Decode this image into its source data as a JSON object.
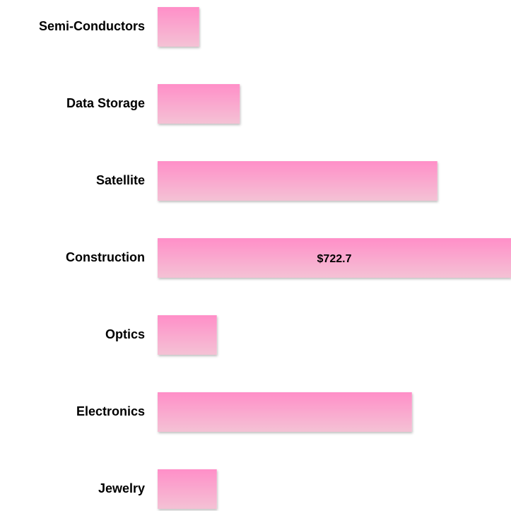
{
  "chart_data": {
    "type": "bar",
    "orientation": "horizontal",
    "categories": [
      "Semi-Conductors",
      "Data Storage",
      "Satellite",
      "Construction",
      "Optics",
      "Electronics",
      "Jewelry"
    ],
    "values": [
      85,
      168,
      572,
      722.7,
      121,
      520,
      121
    ],
    "value_labels": [
      null,
      null,
      null,
      "$722.7",
      null,
      null,
      null
    ],
    "color": "#ff8fc8"
  }
}
